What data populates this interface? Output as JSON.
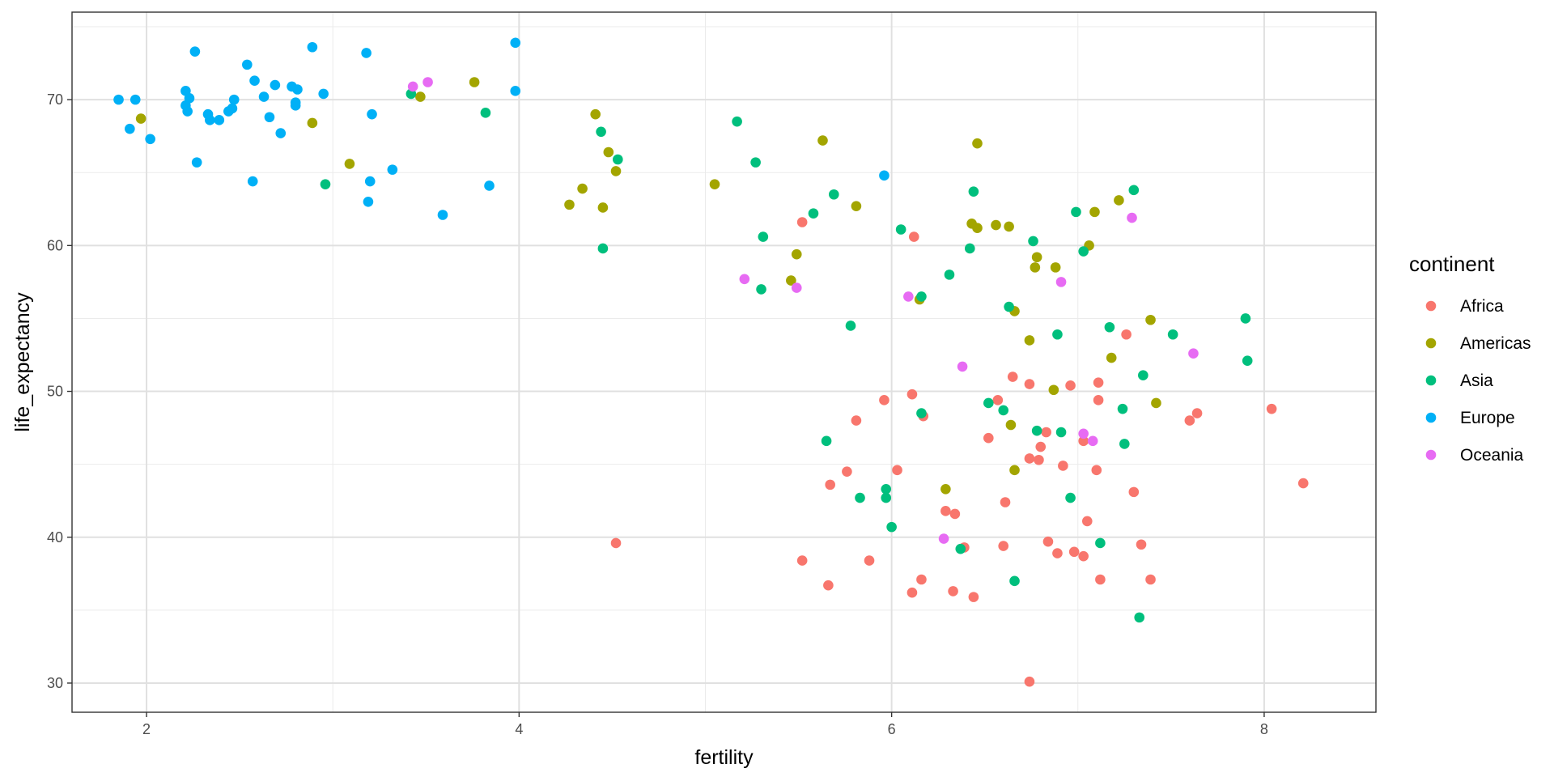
{
  "chart_data": {
    "type": "scatter",
    "title": "",
    "xlabel": "fertility",
    "ylabel": "life_expectancy",
    "xlim": [
      1.6,
      8.6
    ],
    "ylim": [
      28,
      76
    ],
    "x_ticks": [
      2,
      4,
      6,
      8
    ],
    "y_ticks": [
      30,
      40,
      50,
      60,
      70
    ],
    "grid": true,
    "legend": {
      "title": "continent",
      "position": "right",
      "entries": [
        {
          "name": "Africa",
          "color": "#F8766D"
        },
        {
          "name": "Americas",
          "color": "#A3A500"
        },
        {
          "name": "Asia",
          "color": "#00BF7D"
        },
        {
          "name": "Europe",
          "color": "#00B0F6"
        },
        {
          "name": "Oceania",
          "color": "#E76BF3"
        }
      ]
    },
    "series": [
      {
        "name": "Africa",
        "color": "#F8766D",
        "points": [
          [
            4.52,
            39.6
          ],
          [
            5.52,
            61.6
          ],
          [
            6.12,
            60.6
          ],
          [
            5.52,
            38.4
          ],
          [
            5.66,
            36.7
          ],
          [
            5.67,
            43.6
          ],
          [
            5.76,
            44.5
          ],
          [
            5.81,
            48.0
          ],
          [
            5.88,
            38.4
          ],
          [
            5.96,
            49.4
          ],
          [
            6.03,
            44.6
          ],
          [
            6.11,
            36.2
          ],
          [
            6.11,
            49.8
          ],
          [
            6.16,
            37.1
          ],
          [
            6.17,
            48.3
          ],
          [
            6.29,
            41.8
          ],
          [
            6.33,
            36.3
          ],
          [
            6.34,
            41.6
          ],
          [
            6.39,
            39.3
          ],
          [
            6.44,
            35.9
          ],
          [
            6.52,
            46.8
          ],
          [
            6.57,
            49.4
          ],
          [
            6.6,
            39.4
          ],
          [
            6.61,
            42.4
          ],
          [
            6.65,
            51.0
          ],
          [
            6.74,
            50.5
          ],
          [
            6.74,
            45.4
          ],
          [
            6.74,
            30.1
          ],
          [
            6.79,
            45.3
          ],
          [
            6.8,
            46.2
          ],
          [
            6.83,
            47.2
          ],
          [
            6.84,
            39.7
          ],
          [
            6.89,
            38.9
          ],
          [
            6.92,
            44.9
          ],
          [
            6.96,
            50.4
          ],
          [
            6.98,
            39.0
          ],
          [
            7.03,
            46.6
          ],
          [
            7.03,
            38.7
          ],
          [
            7.05,
            41.1
          ],
          [
            7.1,
            44.6
          ],
          [
            7.11,
            50.6
          ],
          [
            7.11,
            49.4
          ],
          [
            7.12,
            37.1
          ],
          [
            7.3,
            43.1
          ],
          [
            7.34,
            39.5
          ],
          [
            7.39,
            37.1
          ],
          [
            7.26,
            53.9
          ],
          [
            7.6,
            48.0
          ],
          [
            7.64,
            48.5
          ],
          [
            8.04,
            48.8
          ],
          [
            8.21,
            43.7
          ]
        ]
      },
      {
        "name": "Americas",
        "color": "#A3A500",
        "points": [
          [
            1.97,
            68.7
          ],
          [
            2.89,
            68.4
          ],
          [
            3.09,
            65.6
          ],
          [
            3.47,
            70.2
          ],
          [
            3.76,
            71.2
          ],
          [
            4.27,
            62.8
          ],
          [
            4.34,
            63.9
          ],
          [
            4.41,
            69.0
          ],
          [
            4.45,
            62.6
          ],
          [
            4.48,
            66.4
          ],
          [
            4.52,
            65.1
          ],
          [
            5.05,
            64.2
          ],
          [
            5.46,
            57.6
          ],
          [
            5.49,
            59.4
          ],
          [
            5.63,
            67.2
          ],
          [
            5.81,
            62.7
          ],
          [
            6.15,
            56.3
          ],
          [
            6.29,
            43.3
          ],
          [
            6.43,
            61.5
          ],
          [
            6.46,
            61.2
          ],
          [
            6.46,
            67.0
          ],
          [
            6.56,
            61.4
          ],
          [
            6.63,
            61.3
          ],
          [
            6.64,
            47.7
          ],
          [
            6.66,
            44.6
          ],
          [
            6.66,
            55.5
          ],
          [
            6.74,
            53.5
          ],
          [
            6.77,
            58.5
          ],
          [
            6.78,
            59.2
          ],
          [
            6.87,
            50.1
          ],
          [
            6.88,
            58.5
          ],
          [
            7.06,
            60.0
          ],
          [
            7.09,
            62.3
          ],
          [
            7.18,
            52.3
          ],
          [
            7.22,
            63.1
          ],
          [
            7.39,
            54.9
          ],
          [
            7.42,
            49.2
          ]
        ]
      },
      {
        "name": "Asia",
        "color": "#00BF7D",
        "points": [
          [
            2.96,
            64.2
          ],
          [
            3.42,
            70.4
          ],
          [
            3.82,
            69.1
          ],
          [
            4.45,
            59.8
          ],
          [
            4.44,
            67.8
          ],
          [
            4.53,
            65.9
          ],
          [
            5.17,
            68.5
          ],
          [
            5.27,
            65.7
          ],
          [
            5.3,
            57.0
          ],
          [
            5.31,
            60.6
          ],
          [
            5.58,
            62.2
          ],
          [
            5.65,
            46.6
          ],
          [
            5.69,
            63.5
          ],
          [
            5.78,
            54.5
          ],
          [
            5.83,
            42.7
          ],
          [
            5.97,
            42.7
          ],
          [
            5.97,
            43.3
          ],
          [
            6.0,
            40.7
          ],
          [
            6.05,
            61.1
          ],
          [
            6.16,
            48.5
          ],
          [
            6.16,
            56.5
          ],
          [
            6.31,
            58.0
          ],
          [
            6.37,
            39.2
          ],
          [
            6.42,
            59.8
          ],
          [
            6.44,
            63.7
          ],
          [
            6.52,
            49.2
          ],
          [
            6.6,
            48.7
          ],
          [
            6.63,
            55.8
          ],
          [
            6.66,
            37.0
          ],
          [
            6.76,
            60.3
          ],
          [
            6.78,
            47.3
          ],
          [
            6.89,
            53.9
          ],
          [
            6.91,
            47.2
          ],
          [
            6.96,
            42.7
          ],
          [
            6.99,
            62.3
          ],
          [
            7.03,
            59.6
          ],
          [
            7.12,
            39.6
          ],
          [
            7.17,
            54.4
          ],
          [
            7.24,
            48.8
          ],
          [
            7.25,
            46.4
          ],
          [
            7.3,
            63.8
          ],
          [
            7.33,
            34.5
          ],
          [
            7.35,
            51.1
          ],
          [
            7.51,
            53.9
          ],
          [
            7.9,
            55.0
          ],
          [
            7.91,
            52.1
          ]
        ]
      },
      {
        "name": "Europe",
        "color": "#00B0F6",
        "points": [
          [
            1.85,
            70.0
          ],
          [
            1.91,
            68.0
          ],
          [
            1.94,
            70.0
          ],
          [
            2.02,
            67.3
          ],
          [
            2.21,
            70.6
          ],
          [
            2.21,
            69.6
          ],
          [
            2.22,
            69.2
          ],
          [
            2.23,
            70.1
          ],
          [
            2.26,
            73.3
          ],
          [
            2.27,
            65.7
          ],
          [
            2.33,
            69.0
          ],
          [
            2.34,
            68.6
          ],
          [
            2.39,
            68.6
          ],
          [
            2.44,
            69.2
          ],
          [
            2.46,
            69.4
          ],
          [
            2.47,
            70.0
          ],
          [
            2.54,
            72.4
          ],
          [
            2.57,
            64.4
          ],
          [
            2.58,
            71.3
          ],
          [
            2.63,
            70.2
          ],
          [
            2.66,
            68.8
          ],
          [
            2.69,
            71.0
          ],
          [
            2.72,
            67.7
          ],
          [
            2.78,
            70.9
          ],
          [
            2.8,
            69.6
          ],
          [
            2.8,
            69.8
          ],
          [
            2.81,
            70.7
          ],
          [
            2.89,
            73.6
          ],
          [
            2.95,
            70.4
          ],
          [
            3.18,
            73.2
          ],
          [
            3.19,
            63.0
          ],
          [
            3.2,
            64.4
          ],
          [
            3.21,
            69.0
          ],
          [
            3.32,
            65.2
          ],
          [
            3.59,
            62.1
          ],
          [
            3.84,
            64.1
          ],
          [
            3.98,
            70.6
          ],
          [
            3.98,
            73.9
          ],
          [
            5.96,
            64.8
          ]
        ]
      },
      {
        "name": "Oceania",
        "color": "#E76BF3",
        "points": [
          [
            3.43,
            70.9
          ],
          [
            3.51,
            71.2
          ],
          [
            5.21,
            57.7
          ],
          [
            5.49,
            57.1
          ],
          [
            6.09,
            56.5
          ],
          [
            6.28,
            39.9
          ],
          [
            6.38,
            51.7
          ],
          [
            6.91,
            57.5
          ],
          [
            7.03,
            47.1
          ],
          [
            7.08,
            46.6
          ],
          [
            7.29,
            61.9
          ],
          [
            7.62,
            52.6
          ]
        ]
      }
    ]
  }
}
